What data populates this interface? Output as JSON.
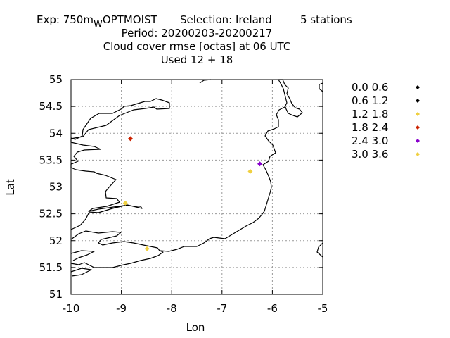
{
  "chart_data": {
    "type": "scatter",
    "title": {
      "line1_prefix": "Exp: 750m",
      "line1_sub": "W",
      "line1_model": "OPTMOIST",
      "line1_selection": "Selection: Ireland",
      "line1_stations": "5 stations",
      "line2": "Period: 20200203-20200217",
      "line3": "Cloud cover rmse [octas] at  06 UTC",
      "line4": "Used  12 + 18"
    },
    "xlabel": "Lon",
    "ylabel": "Lat",
    "xlim": [
      -10,
      -5
    ],
    "ylim": [
      51,
      55
    ],
    "xticks": [
      "-10",
      "-9",
      "-8",
      "-7",
      "-6",
      "-5"
    ],
    "yticks": [
      "51",
      "51.5",
      "52",
      "52.5",
      "53",
      "53.5",
      "54",
      "54.5",
      "55"
    ],
    "grid": true,
    "legend_position": "right",
    "legend": [
      {
        "label": "0.0 0.6",
        "color": "#000000"
      },
      {
        "label": "0.6 1.2",
        "color": "#000000"
      },
      {
        "label": "1.2 1.8",
        "color": "#f0d040"
      },
      {
        "label": "1.8 2.4",
        "color": "#cc2200"
      },
      {
        "label": "2.4 3.0",
        "color": "#8800cc"
      },
      {
        "label": "3.0 3.6",
        "color": "#f0d040"
      }
    ],
    "points": [
      {
        "lon": -8.82,
        "lat": 53.9,
        "color": "#cc2200"
      },
      {
        "lon": -6.25,
        "lat": 53.43,
        "color": "#8800cc"
      },
      {
        "lon": -6.44,
        "lat": 53.29,
        "color": "#f0d040"
      },
      {
        "lon": -8.92,
        "lat": 52.7,
        "color": "#f0d040"
      },
      {
        "lon": -8.49,
        "lat": 51.85,
        "color": "#f0d040"
      }
    ]
  }
}
